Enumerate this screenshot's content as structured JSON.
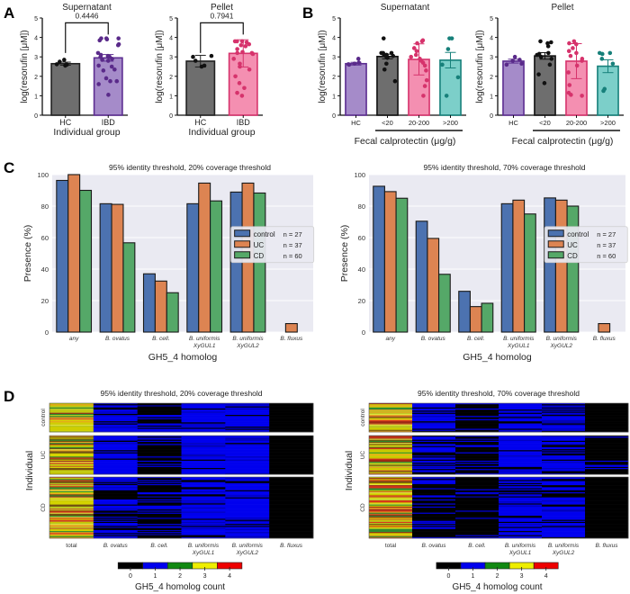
{
  "panels": {
    "A": {
      "letter": "A"
    },
    "B": {
      "letter": "B"
    },
    "C": {
      "letter": "C"
    },
    "D": {
      "letter": "D"
    }
  },
  "chart_data": [
    {
      "id": "A-supernatant",
      "type": "bar",
      "title": "Supernatant",
      "xlabel": "Individual group",
      "ylabel": "log(resorufin [μM])",
      "ylim": [
        0,
        5
      ],
      "yticks": [
        0,
        1,
        2,
        3,
        4,
        5
      ],
      "categories": [
        "HC",
        "IBD"
      ],
      "values": [
        2.65,
        2.95
      ],
      "sem": [
        0.08,
        0.17
      ],
      "colors": [
        "#6e6e6e",
        "#a58bc9"
      ],
      "edge_colors": [
        "#222222",
        "#5c2d91"
      ],
      "dot_colors": [
        "#111111",
        "#5a2a8a"
      ],
      "points": [
        [
          2.55,
          2.6,
          2.62,
          2.75,
          2.85
        ],
        [
          1.05,
          1.6,
          1.75,
          1.75,
          1.9,
          2.3,
          2.35,
          2.5,
          2.55,
          2.8,
          2.85,
          2.9,
          3.0,
          3.0,
          3.05,
          3.1,
          3.2,
          3.6,
          3.65,
          3.85,
          3.9,
          3.95,
          3.95,
          3.95
        ]
      ],
      "annotation": {
        "text": "0.4446",
        "between": [
          "HC",
          "IBD"
        ]
      }
    },
    {
      "id": "A-pellet",
      "type": "bar",
      "title": "Pellet",
      "xlabel": "Individual group",
      "ylabel": "log(resorufin [μM])",
      "ylim": [
        0,
        5
      ],
      "yticks": [
        0,
        1,
        2,
        3,
        4,
        5
      ],
      "categories": [
        "HC",
        "IBD"
      ],
      "values": [
        2.78,
        3.18
      ],
      "sem": [
        0.3,
        0.7
      ],
      "colors": [
        "#6e6e6e",
        "#f48fb1"
      ],
      "edge_colors": [
        "#222222",
        "#d6336c"
      ],
      "dot_colors": [
        "#111111",
        "#d6336c"
      ],
      "points": [
        [
          2.5,
          2.55,
          2.8,
          3.0,
          3.05
        ],
        [
          1.0,
          1.15,
          1.4,
          1.65,
          2.0,
          2.35,
          2.5,
          2.65,
          2.9,
          3.15,
          3.2,
          3.2,
          3.25,
          3.4,
          3.55,
          3.6,
          3.65,
          3.75,
          3.8,
          3.8,
          3.8
        ]
      ],
      "annotation": {
        "text": "0.7941",
        "between": [
          "HC",
          "IBD"
        ]
      }
    },
    {
      "id": "B-supernatant",
      "type": "bar",
      "title": "Supernatant",
      "xlabel": "Fecal calprotectin (μg/g)",
      "ylabel": "log(resorufin [μM])",
      "ylim": [
        0,
        5
      ],
      "yticks": [
        0,
        1,
        2,
        3,
        4,
        5
      ],
      "categories": [
        "HC",
        "<20",
        "20-200",
        ">200"
      ],
      "bracket_under": [
        "<20",
        ">200"
      ],
      "values": [
        2.65,
        3.02,
        2.87,
        2.83
      ],
      "sem": [
        0.07,
        0.12,
        0.8,
        0.4
      ],
      "colors": [
        "#a58bc9",
        "#6e6e6e",
        "#f48fb1",
        "#7ccfc9"
      ],
      "edge_colors": [
        "#5c2d91",
        "#111111",
        "#d6336c",
        "#17807a"
      ],
      "dot_colors": [
        "#5a2a8a",
        "#111111",
        "#d6336c",
        "#17807a"
      ],
      "points": [
        [
          2.6,
          2.62,
          2.65,
          2.7,
          2.9
        ],
        [
          1.75,
          2.35,
          2.65,
          2.95,
          3.0,
          3.05,
          3.1,
          3.1,
          3.15,
          3.2,
          3.2,
          3.2,
          3.95
        ],
        [
          1.0,
          1.5,
          1.8,
          2.3,
          2.55,
          2.7,
          2.8,
          2.9,
          3.0,
          3.1,
          3.3,
          3.45,
          3.7,
          3.8,
          3.85
        ],
        [
          1.0,
          1.95,
          2.6,
          3.4,
          3.95,
          3.95
        ]
      ]
    },
    {
      "id": "B-pellet",
      "type": "bar",
      "title": "Pellet",
      "xlabel": "Fecal calprotectin (μg/g)",
      "ylabel": "log(resorufin [μM])",
      "ylim": [
        0,
        5
      ],
      "yticks": [
        0,
        1,
        2,
        3,
        4,
        5
      ],
      "categories": [
        "HC",
        "<20",
        "20-200",
        ">200"
      ],
      "bracket_under": [
        "<20",
        ">200"
      ],
      "values": [
        2.78,
        3.05,
        2.78,
        2.52
      ],
      "sem": [
        0.1,
        0.17,
        0.9,
        0.33
      ],
      "colors": [
        "#a58bc9",
        "#6e6e6e",
        "#f48fb1",
        "#7ccfc9"
      ],
      "edge_colors": [
        "#5c2d91",
        "#111111",
        "#d6336c",
        "#17807a"
      ],
      "dot_colors": [
        "#5a2a8a",
        "#111111",
        "#d6336c",
        "#17807a"
      ],
      "points": [
        [
          2.6,
          2.65,
          2.8,
          2.85,
          3.0
        ],
        [
          1.65,
          2.1,
          2.6,
          2.9,
          3.0,
          3.1,
          3.15,
          3.2,
          3.55,
          3.7,
          3.75,
          3.8
        ],
        [
          1.0,
          1.05,
          1.15,
          1.55,
          2.2,
          2.55,
          2.8,
          2.9,
          3.05,
          3.2,
          3.3,
          3.45,
          3.65,
          3.7,
          3.8
        ],
        [
          1.25,
          1.35,
          2.65,
          2.9,
          3.15,
          3.2,
          3.2
        ]
      ]
    },
    {
      "id": "C-20",
      "type": "bar",
      "title": "95% identity threshold, 20% coverage threshold",
      "xlabel": "GH5_4 homolog",
      "ylabel": "Presence (%)",
      "ylim": [
        0,
        100
      ],
      "yticks": [
        0,
        20,
        40,
        60,
        80,
        100
      ],
      "grid": true,
      "legend_position": "right",
      "categories": [
        [
          "any"
        ],
        [
          "B. ovatus"
        ],
        [
          "B. cell."
        ],
        [
          "B. uniformis",
          "XyGUL1"
        ],
        [
          "B. uniformis",
          "XyGUL2"
        ],
        [
          "B. fluxus"
        ]
      ],
      "series": [
        {
          "name": "control",
          "n": "n = 27",
          "color": "#4c72b0",
          "values": [
            96.3,
            81.5,
            37.0,
            81.5,
            88.9,
            0
          ]
        },
        {
          "name": "UC",
          "n": "n = 37",
          "color": "#dd8452",
          "values": [
            100,
            81.1,
            32.4,
            94.6,
            94.6,
            5.4
          ]
        },
        {
          "name": "CD",
          "n": "n = 60",
          "color": "#55a868",
          "values": [
            90.0,
            56.7,
            25.0,
            83.3,
            88.3,
            0
          ]
        }
      ]
    },
    {
      "id": "C-70",
      "type": "bar",
      "title": "95% identity threshold, 70% coverage threshold",
      "xlabel": "GH5_4 homolog",
      "ylabel": "Presence (%)",
      "ylim": [
        0,
        100
      ],
      "yticks": [
        0,
        20,
        40,
        60,
        80,
        100
      ],
      "grid": true,
      "legend_position": "right",
      "categories": [
        [
          "any"
        ],
        [
          "B. ovatus"
        ],
        [
          "B. cell."
        ],
        [
          "B. uniformis",
          "XyGUL1"
        ],
        [
          "B. uniformis",
          "XyGUL2"
        ],
        [
          "B. fluxus"
        ]
      ],
      "series": [
        {
          "name": "control",
          "n": "n = 27",
          "color": "#4c72b0",
          "values": [
            92.6,
            70.4,
            25.9,
            81.5,
            85.2,
            0
          ]
        },
        {
          "name": "UC",
          "n": "n = 37",
          "color": "#dd8452",
          "values": [
            89.2,
            59.5,
            16.2,
            83.8,
            83.8,
            5.4
          ]
        },
        {
          "name": "CD",
          "n": "n = 60",
          "color": "#55a868",
          "values": [
            85.0,
            36.7,
            18.3,
            75.0,
            80.0,
            0
          ]
        }
      ]
    },
    {
      "id": "D-20",
      "type": "heatmap",
      "title": "95% identity threshold, 20% coverage threshold",
      "ylabel": "Individual",
      "groups": [
        {
          "name": "control",
          "rows": 27
        },
        {
          "name": "UC",
          "rows": 37
        },
        {
          "name": "CD",
          "rows": 60
        }
      ],
      "columns": [
        [
          "total"
        ],
        [
          "B. ovatus"
        ],
        [
          "B. cell."
        ],
        [
          "B. uniformis",
          "XyGUL1"
        ],
        [
          "B. uniformis",
          "XyGUL2"
        ],
        [
          "B. fluxus"
        ]
      ],
      "presence": {
        "control": [
          1,
          0.815,
          0.37,
          0.815,
          0.889,
          0
        ],
        "UC": [
          1,
          0.811,
          0.324,
          0.946,
          0.946,
          0.054
        ],
        "CD": [
          1,
          0.567,
          0.25,
          0.833,
          0.883,
          0
        ]
      },
      "colorbar": {
        "label": "GH5_4 homolog count",
        "ticks": [
          0,
          1,
          2,
          3,
          4
        ],
        "colors": [
          "#000000",
          "#0000ee",
          "#118811",
          "#eeee00",
          "#ee0000"
        ]
      }
    },
    {
      "id": "D-70",
      "type": "heatmap",
      "title": "95% identity threshold, 70% coverage threshold",
      "ylabel": "Individual",
      "groups": [
        {
          "name": "control",
          "rows": 27
        },
        {
          "name": "UC",
          "rows": 37
        },
        {
          "name": "CD",
          "rows": 60
        }
      ],
      "columns": [
        [
          "total"
        ],
        [
          "B. ovatus"
        ],
        [
          "B. cell."
        ],
        [
          "B. uniformis",
          "XyGUL1"
        ],
        [
          "B. uniformis",
          "XyGUL2"
        ],
        [
          "B. fluxus"
        ]
      ],
      "presence": {
        "control": [
          1,
          0.704,
          0.259,
          0.815,
          0.852,
          0
        ],
        "UC": [
          1,
          0.595,
          0.162,
          0.838,
          0.838,
          0.054
        ],
        "CD": [
          1,
          0.367,
          0.183,
          0.75,
          0.8,
          0
        ]
      },
      "colorbar": {
        "label": "GH5_4 homolog count",
        "ticks": [
          0,
          1,
          2,
          3,
          4
        ],
        "colors": [
          "#000000",
          "#0000ee",
          "#118811",
          "#eeee00",
          "#ee0000"
        ]
      }
    }
  ]
}
